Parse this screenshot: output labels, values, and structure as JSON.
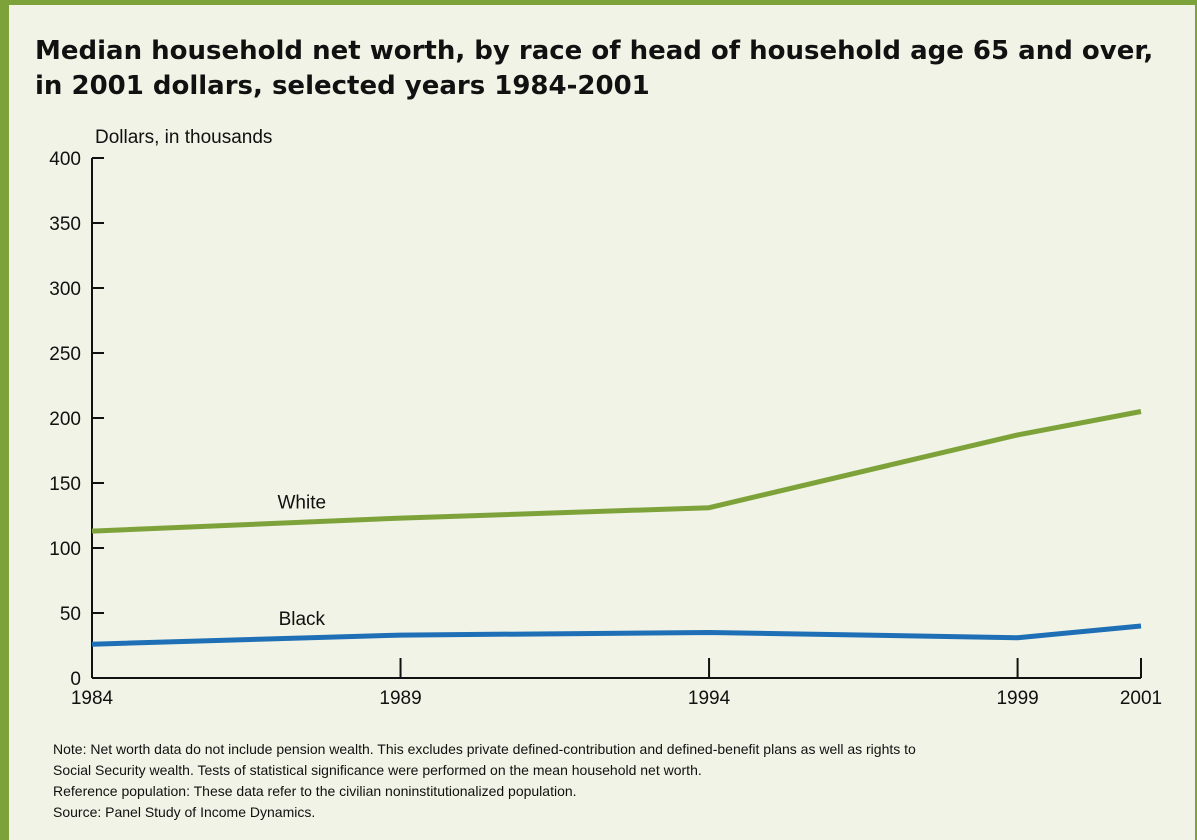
{
  "title": "Median household net worth, by race of head of household age 65 and over, in 2001 dollars, selected years 1984-2001",
  "colors": {
    "frame": "#7ea23a",
    "background": "#f0f3e5",
    "white_series": "#7ea23a",
    "black_series": "#1e6fb5"
  },
  "chart_data": {
    "type": "line",
    "title": "Median household net worth, by race of head of household age 65 and over, in 2001 dollars, selected years 1984-2001",
    "ylabel": "Dollars, in thousands",
    "xlabel": "",
    "x": [
      1984,
      1989,
      1994,
      1999,
      2001
    ],
    "x_tick_labels": [
      "1984",
      "1989",
      "1994",
      "1999",
      "2001"
    ],
    "ylim": [
      0,
      400
    ],
    "y_ticks": [
      0,
      50,
      100,
      150,
      200,
      250,
      300,
      350,
      400
    ],
    "grid": false,
    "legend": "inline labels",
    "series": [
      {
        "name": "White",
        "values": [
          113,
          123,
          131,
          187,
          205
        ]
      },
      {
        "name": "Black",
        "values": [
          26,
          33,
          35,
          31,
          40
        ]
      }
    ]
  },
  "notes": [
    "Note: Net worth data do not include pension wealth. This excludes private defined-contribution and defined-benefit plans as well as rights to",
    "Social Security wealth. Tests of statistical significance were performed on the mean household net worth.",
    "Reference population: These data refer to the civilian noninstitutionalized population.",
    "Source: Panel Study of Income Dynamics."
  ]
}
